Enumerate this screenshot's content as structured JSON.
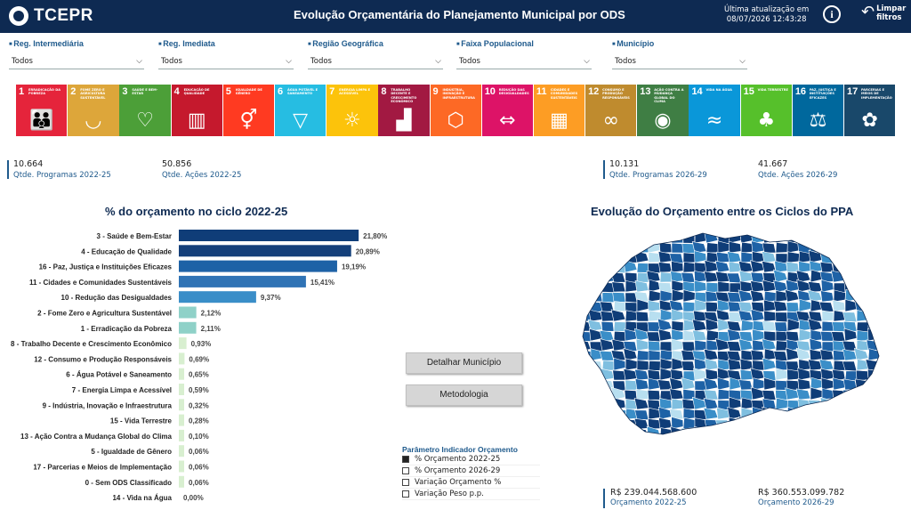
{
  "header": {
    "brand": "TCEPR",
    "title": "Evolução Orçamentária do Planejamento Municipal por ODS",
    "update_label": "Última atualização em",
    "update_date": "08/07/2026 12:43:28",
    "info_icon": "info-icon",
    "clear_icon": "undo-arrow-icon",
    "clear_label_1": "Limpar",
    "clear_label_2": "filtros"
  },
  "filters": [
    {
      "label": "Reg. Intermediária",
      "value": "Todos"
    },
    {
      "label": "Reg. Imediata",
      "value": "Todos"
    },
    {
      "label": "Região Geográfica",
      "value": "Todos"
    },
    {
      "label": "Faixa Populacional",
      "value": "Todos"
    },
    {
      "label": "Município",
      "value": "Todos"
    }
  ],
  "ods": [
    {
      "num": "1",
      "name": "Erradicação da pobreza",
      "color": "#e5243b",
      "icon": "family-icon"
    },
    {
      "num": "2",
      "name": "Fome zero e agricultura sustentável",
      "color": "#dda63a",
      "icon": "bowl-icon"
    },
    {
      "num": "3",
      "name": "Saúde e bem-estar",
      "color": "#4c9f38",
      "icon": "heartbeat-icon"
    },
    {
      "num": "4",
      "name": "Educação de qualidade",
      "color": "#c5192d",
      "icon": "book-icon"
    },
    {
      "num": "5",
      "name": "Igualdade de gênero",
      "color": "#ff3a21",
      "icon": "gender-icon"
    },
    {
      "num": "6",
      "name": "Água potável e saneamento",
      "color": "#26bde2",
      "icon": "water-icon"
    },
    {
      "num": "7",
      "name": "Energia limpa e acessível",
      "color": "#fcc30b",
      "icon": "sun-icon"
    },
    {
      "num": "8",
      "name": "Trabalho decente e crescimento econômico",
      "color": "#a21942",
      "icon": "growth-icon"
    },
    {
      "num": "9",
      "name": "Indústria, inovação e infraestrutura",
      "color": "#fd6925",
      "icon": "cubes-icon"
    },
    {
      "num": "10",
      "name": "Redução das desigualdades",
      "color": "#dd1367",
      "icon": "equality-icon"
    },
    {
      "num": "11",
      "name": "Cidades e comunidades sustentáveis",
      "color": "#fd9d24",
      "icon": "city-icon"
    },
    {
      "num": "12",
      "name": "Consumo e produção responsáveis",
      "color": "#bf8b2e",
      "icon": "infinity-icon"
    },
    {
      "num": "13",
      "name": "Ação contra a mudança global do clima",
      "color": "#3f7e44",
      "icon": "eye-icon"
    },
    {
      "num": "14",
      "name": "Vida na água",
      "color": "#0a97d9",
      "icon": "fish-icon"
    },
    {
      "num": "15",
      "name": "Vida terrestre",
      "color": "#56c02b",
      "icon": "tree-icon"
    },
    {
      "num": "16",
      "name": "Paz, justiça e instituições eficazes",
      "color": "#00689d",
      "icon": "dove-icon"
    },
    {
      "num": "17",
      "name": "Parcerias e meios de implementação",
      "color": "#19486a",
      "icon": "rings-icon"
    }
  ],
  "kpis": {
    "programs_2022": {
      "value": "10.664",
      "label": "Qtde. Programas 2022-25"
    },
    "actions_2022": {
      "value": "50.856",
      "label": "Qtde. Ações 2022-25"
    },
    "programs_2026": {
      "value": "10.131",
      "label": "Qtde. Programas 2026-29"
    },
    "actions_2026": {
      "value": "41.667",
      "label": "Qtde. Ações 2026-29"
    }
  },
  "chart_title": "% do orçamento no ciclo 2022-25",
  "map_title": "Evolução do Orçamento entre os Ciclos do PPA",
  "chart_data": {
    "type": "bar",
    "orientation": "horizontal",
    "title": "% do orçamento no ciclo 2022-25",
    "categories": [
      "3 - Saúde e Bem-Estar",
      "4 - Educação de Qualidade",
      "16 - Paz, Justiça e Instituições Eficazes",
      "11 - Cidades e Comunidades Sustentáveis",
      "10 - Redução das Desigualdades",
      "2 - Fome Zero e Agricultura Sustentável",
      "1 - Erradicação da Pobreza",
      "8 - Trabalho Decente e Crescimento Econômico",
      "12 - Consumo e Produção Responsáveis",
      "6 - Água Potável e Saneamento",
      "7 - Energia Limpa e Acessível",
      "9 - Indústria, Inovação e Infraestrutura",
      "15 - Vida Terrestre",
      "13 - Ação Contra a Mudança Global do Clima",
      "5 - Igualdade de Gênero",
      "17 - Parcerias e Meios de Implementação",
      "0 - Sem ODS Classificado",
      "14 - Vida na Água"
    ],
    "values": [
      21.8,
      20.89,
      19.19,
      15.41,
      9.37,
      2.12,
      2.11,
      0.93,
      0.69,
      0.65,
      0.59,
      0.32,
      0.28,
      0.1,
      0.06,
      0.06,
      0.06,
      0.0
    ],
    "value_labels": [
      "21,80%",
      "20,89%",
      "19,19%",
      "15,41%",
      "9,37%",
      "2,12%",
      "2,11%",
      "0,93%",
      "0,69%",
      "0,65%",
      "0,59%",
      "0,32%",
      "0,28%",
      "0,10%",
      "0,06%",
      "0,06%",
      "0,06%",
      "0,00%"
    ],
    "colors": [
      "#0f3d78",
      "#143f7a",
      "#1e62a6",
      "#2f73b5",
      "#3a8ec8",
      "#8fd1c8",
      "#8fd1c8",
      "#d8efd0",
      "#d8efd0",
      "#d8efd0",
      "#d8efd0",
      "#d8efd0",
      "#d8efd0",
      "#d8efd0",
      "#d8efd0",
      "#d8efd0",
      "#d8efd0",
      "#d8efd0"
    ],
    "xlim": [
      0,
      22
    ]
  },
  "buttons": {
    "detail": "Detalhar Município",
    "method": "Metodologia"
  },
  "param": {
    "title": "Parâmetro Indicador Orçamento",
    "options": [
      {
        "label": "% Orçamento 2022-25",
        "checked": true
      },
      {
        "label": "% Orçamento 2026-29",
        "checked": false
      },
      {
        "label": "Variação Orçamento %",
        "checked": false
      },
      {
        "label": "Variação Peso p.p.",
        "checked": false
      }
    ]
  },
  "budget": {
    "b2022": {
      "value": "R$ 239.044.568.600",
      "label": "Orçamento 2022-25"
    },
    "b2026": {
      "value": "R$ 360.553.099.782",
      "label": "Orçamento 2026-29"
    }
  },
  "map_colors": [
    "#0f3d78",
    "#1e62a6",
    "#3a8ec8",
    "#7fbfe0",
    "#b8dff0"
  ]
}
